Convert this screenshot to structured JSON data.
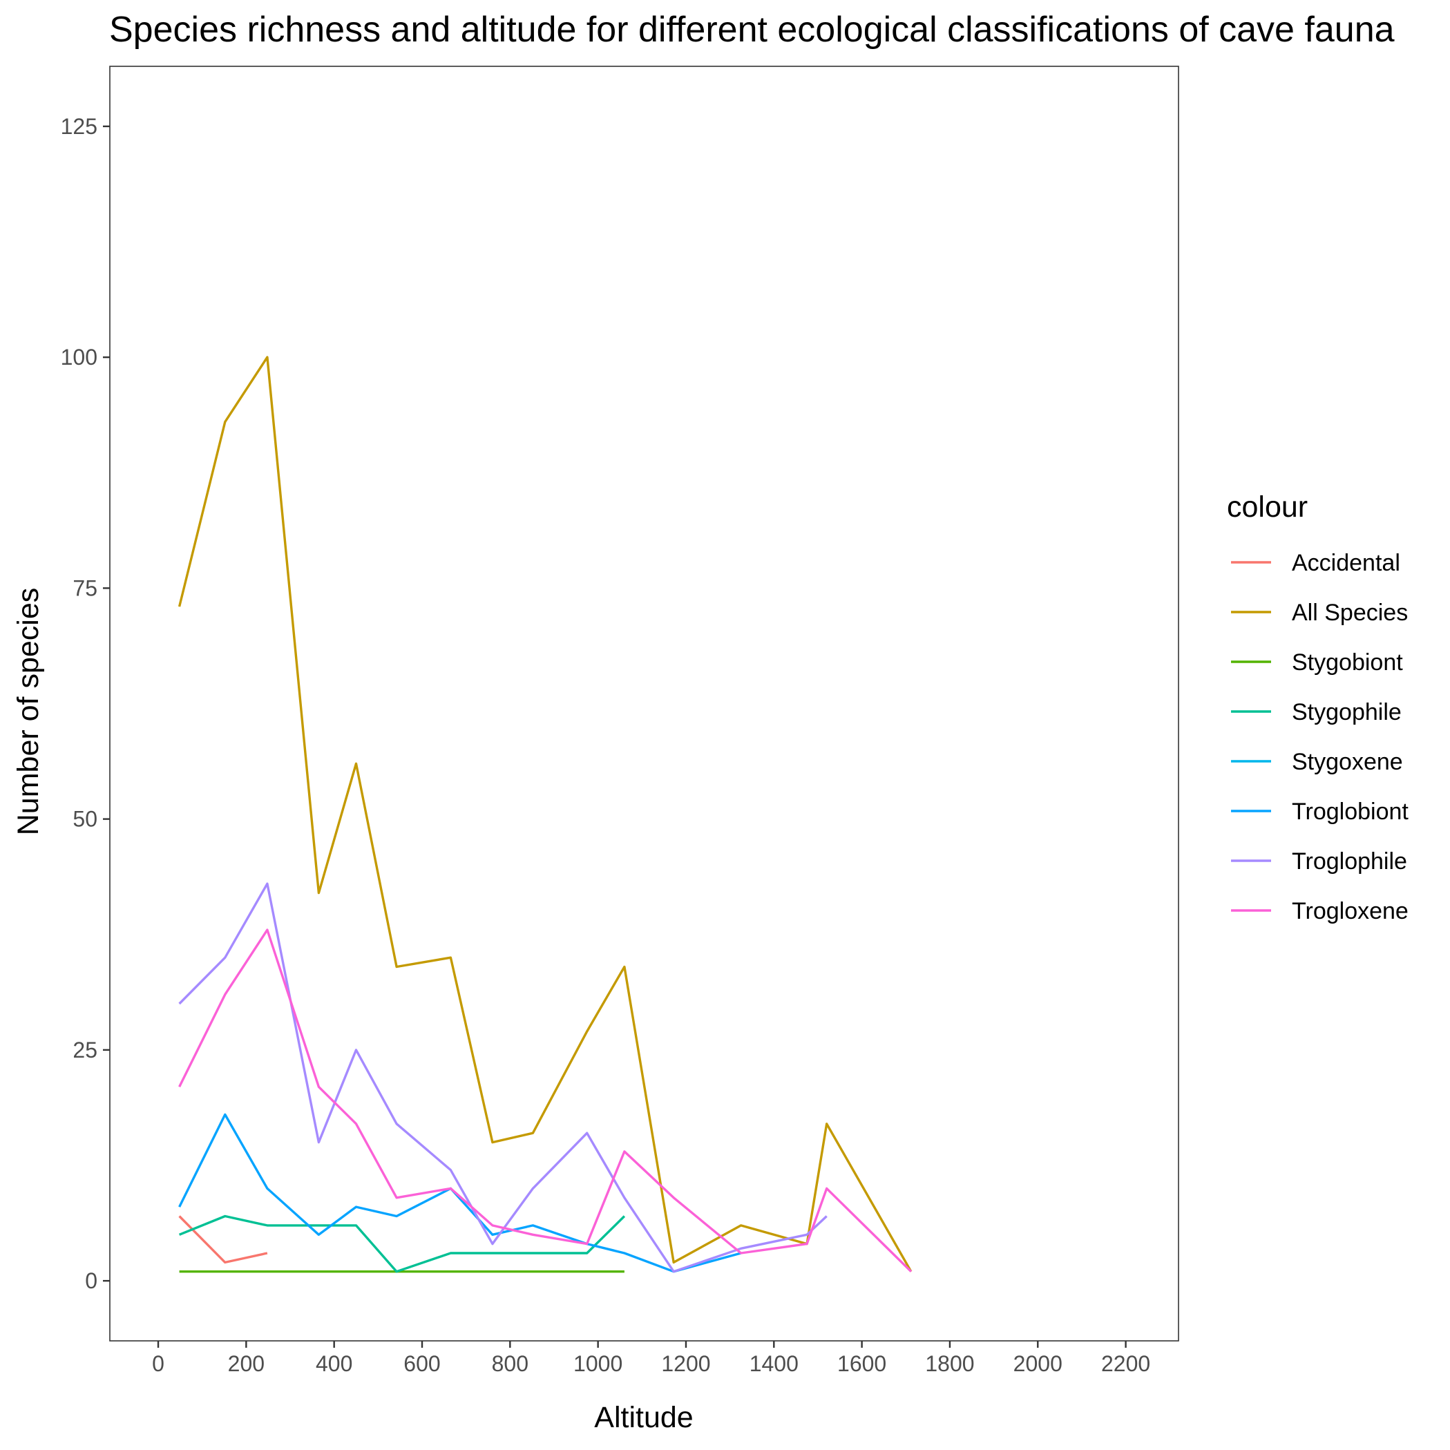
{
  "chart_data": {
    "type": "line",
    "title": "Species richness and altitude for different ecological classifications of cave fauna",
    "xlabel": "Altitude",
    "ylabel": "Number of species",
    "xlim": [
      -110,
      2320
    ],
    "ylim": [
      -6.5,
      131.5
    ],
    "x_ticks": [
      0,
      200,
      400,
      600,
      800,
      1000,
      1200,
      1400,
      1600,
      1800,
      2000,
      2200
    ],
    "y_ticks": [
      0,
      25,
      50,
      75,
      100,
      125
    ],
    "grid": false,
    "legend": {
      "title": "colour",
      "position": "right"
    },
    "series": [
      {
        "name": "Accidental",
        "color": "#F8766D",
        "points": [
          [
            48,
            7
          ],
          [
            152,
            2
          ],
          [
            248,
            3
          ]
        ]
      },
      {
        "name": "All Species",
        "color": "#C49A00",
        "points": [
          [
            48,
            73
          ],
          [
            152,
            93
          ],
          [
            248,
            100
          ],
          [
            365,
            42
          ],
          [
            450,
            56
          ],
          [
            542,
            34
          ],
          [
            665,
            35
          ],
          [
            760,
            15
          ],
          [
            852,
            16
          ],
          [
            975,
            27
          ],
          [
            1060,
            34
          ],
          [
            1172,
            2
          ],
          [
            1325,
            6
          ],
          [
            1475,
            4
          ],
          [
            1520,
            17
          ],
          [
            1712,
            1
          ]
        ]
      },
      {
        "name": "Stygobiont",
        "color": "#53B400",
        "points": [
          [
            48,
            1
          ],
          [
            1060,
            1
          ]
        ]
      },
      {
        "name": "Stygophile",
        "color": "#00C094",
        "points": [
          [
            48,
            5
          ],
          [
            152,
            7
          ],
          [
            248,
            6
          ],
          [
            365,
            6
          ],
          [
            450,
            6
          ],
          [
            542,
            1
          ],
          [
            665,
            3
          ],
          [
            760,
            3
          ],
          [
            852,
            3
          ],
          [
            975,
            3
          ],
          [
            1060,
            7
          ]
        ]
      },
      {
        "name": "Stygoxene",
        "color": "#00B6EB",
        "points": []
      },
      {
        "name": "Troglobiont",
        "color": "#06A4FF",
        "points": [
          [
            48,
            8
          ],
          [
            152,
            18
          ],
          [
            248,
            10
          ],
          [
            365,
            5
          ],
          [
            450,
            8
          ],
          [
            542,
            7
          ],
          [
            665,
            10
          ],
          [
            760,
            5
          ],
          [
            852,
            6
          ],
          [
            975,
            4
          ],
          [
            1060,
            3
          ],
          [
            1172,
            1
          ],
          [
            1325,
            3
          ]
        ]
      },
      {
        "name": "Troglophile",
        "color": "#A58AFF",
        "points": [
          [
            48,
            30
          ],
          [
            152,
            35
          ],
          [
            248,
            43
          ],
          [
            365,
            15
          ],
          [
            450,
            25
          ],
          [
            542,
            17
          ],
          [
            665,
            12
          ],
          [
            760,
            4
          ],
          [
            852,
            10
          ],
          [
            975,
            16
          ],
          [
            1060,
            9
          ],
          [
            1172,
            1
          ],
          [
            1325,
            3.5
          ],
          [
            1475,
            5
          ],
          [
            1520,
            7
          ]
        ]
      },
      {
        "name": "Trogloxene",
        "color": "#FB61D7",
        "points": [
          [
            48,
            21
          ],
          [
            152,
            31
          ],
          [
            248,
            38
          ],
          [
            365,
            21
          ],
          [
            450,
            17
          ],
          [
            542,
            9
          ],
          [
            665,
            10
          ],
          [
            760,
            6
          ],
          [
            852,
            5
          ],
          [
            975,
            4
          ],
          [
            1060,
            14
          ],
          [
            1172,
            9
          ],
          [
            1325,
            3
          ],
          [
            1475,
            4
          ],
          [
            1520,
            10
          ],
          [
            1712,
            1
          ]
        ]
      }
    ]
  }
}
